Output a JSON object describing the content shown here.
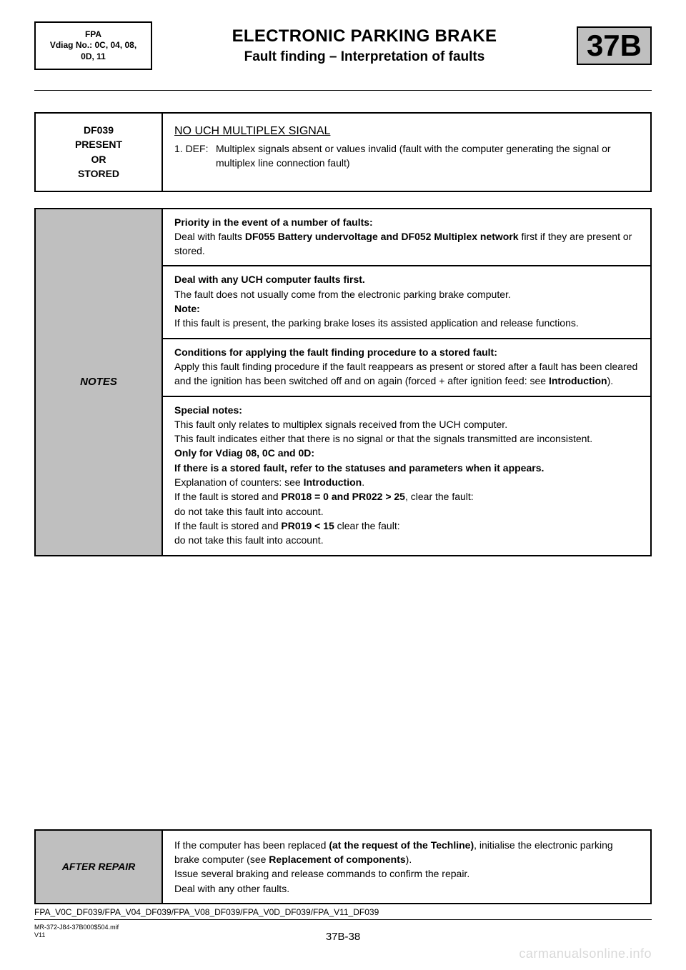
{
  "colors": {
    "bg": "#ffffff",
    "text": "#000000",
    "grey_fill": "#bfbfbf",
    "watermark": "#d9d9d9",
    "border": "#000000"
  },
  "font": {
    "family": "Arial",
    "body_pt": 14,
    "title_pt": 24,
    "subtitle_pt": 19,
    "code_pt": 42
  },
  "header": {
    "left_l1": "FPA",
    "left_l2": "Vdiag No.: 0C, 04, 08,",
    "left_l3": "0D, 11",
    "title": "ELECTRONIC PARKING BRAKE",
    "subtitle": "Fault finding – Interpretation of faults",
    "code": "37B"
  },
  "fault": {
    "left_l1": "DF039",
    "left_l2": "PRESENT",
    "left_l3": "OR",
    "left_l4": "STORED",
    "title": "NO UCH MULTIPLEX SIGNAL",
    "def_num": "1. DEF:",
    "def_text": "Multiplex signals absent or values invalid (fault with the computer generating the signal or multiplex line connection fault)"
  },
  "notes": {
    "label": "NOTES",
    "c1_b1": "Priority in the event of a number of faults:",
    "c1_t1a": "Deal with faults ",
    "c1_b1b": "DF055 Battery undervoltage and DF052 Multiplex network",
    "c1_t1c": " first if they are present or stored.",
    "c2_b1": "Deal with any UCH computer faults first.",
    "c2_t1": "The fault does not usually come from the electronic parking brake computer.",
    "c2_b2": "Note:",
    "c2_t2": "If this fault is present, the parking brake loses its assisted application and release functions.",
    "c3_b1": "Conditions for applying the fault finding procedure to a stored fault:",
    "c3_t1a": "Apply this fault finding procedure if the fault reappears as present or stored after a fault has been cleared and the ignition has been switched off and on again (forced + after ignition feed: see ",
    "c3_b1b": "Introduction",
    "c3_t1c": ").",
    "c4_b1": "Special notes:",
    "c4_t1": "This fault only relates to multiplex signals received from the UCH computer.",
    "c4_t2": "This fault indicates either that there is no signal or that the signals transmitted are inconsistent.",
    "c4_b2": "Only for Vdiag 08, 0C and 0D:",
    "c4_b3": "If there is a stored fault, refer to the statuses and parameters when it appears.",
    "c4_t3a": "Explanation of counters: see ",
    "c4_b3b": "Introduction",
    "c4_t3c": ".",
    "c4_t4a": "If the fault is stored and ",
    "c4_b4b": "PR018 = 0 and PR022 > 25",
    "c4_t4c": ", clear the fault:",
    "c4_t5": "do not take this fault into account.",
    "c4_t6a": "If the fault is stored and ",
    "c4_b6b": "PR019 < 15",
    "c4_t6c": " clear the fault:",
    "c4_t7": "do not take this fault into account."
  },
  "after": {
    "label": "AFTER REPAIR",
    "t1a": "If the computer has been replaced ",
    "b1b": "(at the request of the Techline)",
    "t1c": ", initialise the electronic parking brake computer (see ",
    "b1d": "Replacement of components",
    "t1e": ").",
    "t2": "Issue several braking and release commands to confirm the repair.",
    "t3": "Deal with any other faults."
  },
  "ref": "FPA_V0C_DF039/FPA_V04_DF039/FPA_V08_DF039/FPA_V0D_DF039/FPA_V11_DF039",
  "footer": {
    "mif": "MR-372-J84-37B000$504.mif",
    "ver": "V11",
    "page": "37B-38"
  },
  "watermark": "carmanualsonline.info"
}
